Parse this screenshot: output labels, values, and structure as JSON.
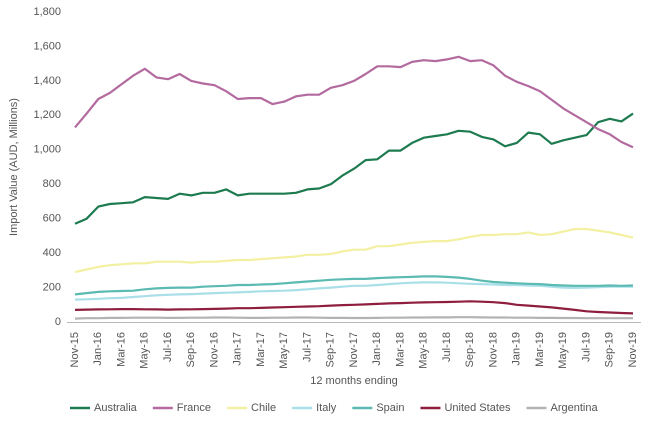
{
  "chart_data": {
    "type": "line",
    "y_label": "Import Value (AUD, Millions)",
    "x_label": "12 months ending",
    "categories": [
      "Nov-15",
      null,
      "Jan-16",
      null,
      "Mar-16",
      null,
      "May-16",
      null,
      "Jul-16",
      null,
      "Sep-16",
      null,
      "Nov-16",
      null,
      "Jan-17",
      null,
      "Mar-17",
      null,
      "May-17",
      null,
      "Jul-17",
      null,
      "Sep-17",
      null,
      "Nov-17",
      null,
      "Jan-18",
      null,
      "Mar-18",
      null,
      "May-18",
      null,
      "Jul-18",
      null,
      "Sep-18",
      null,
      "Nov-18",
      null,
      "Jan-19",
      null,
      "Mar-19",
      null,
      "May-19",
      null,
      "Jul-19",
      null,
      "Sep-19",
      null,
      "Nov-19"
    ],
    "ylim": [
      0,
      1800
    ],
    "yticks": [
      0,
      200,
      400,
      600,
      800,
      {
        "value": 1000,
        "label": "1,000"
      },
      {
        "value": 1200,
        "label": "1,200"
      },
      {
        "value": 1400,
        "label": "1,400"
      },
      {
        "value": 1600,
        "label": "1,600"
      },
      {
        "value": 1800,
        "label": "1,800"
      }
    ],
    "grid": false,
    "legend": "bottom",
    "series": [
      {
        "name": "Australia",
        "color": "#1e7b50",
        "values": [
          570,
          600,
          670,
          685,
          690,
          695,
          725,
          720,
          715,
          745,
          735,
          750,
          750,
          770,
          735,
          745,
          745,
          745,
          745,
          750,
          770,
          775,
          800,
          850,
          890,
          940,
          945,
          995,
          995,
          1040,
          1070,
          1080,
          1090,
          1110,
          1105,
          1075,
          1060,
          1020,
          1040,
          1100,
          1090,
          1035,
          1055,
          1070,
          1085,
          1160,
          1180,
          1165,
          1210
        ]
      },
      {
        "name": "France",
        "color": "#b36a9f",
        "values": [
          1130,
          1210,
          1295,
          1330,
          1380,
          1430,
          1470,
          1420,
          1410,
          1440,
          1400,
          1385,
          1375,
          1340,
          1295,
          1300,
          1300,
          1265,
          1280,
          1310,
          1320,
          1320,
          1360,
          1375,
          1400,
          1440,
          1485,
          1485,
          1480,
          1510,
          1520,
          1515,
          1525,
          1540,
          1515,
          1520,
          1490,
          1430,
          1395,
          1370,
          1340,
          1290,
          1240,
          1200,
          1160,
          1120,
          1090,
          1045,
          1015
        ]
      },
      {
        "name": "Chile",
        "color": "#f3f0a2",
        "values": [
          290,
          305,
          320,
          330,
          335,
          340,
          340,
          350,
          350,
          350,
          345,
          350,
          350,
          355,
          360,
          360,
          365,
          370,
          375,
          380,
          390,
          390,
          395,
          410,
          420,
          420,
          440,
          440,
          450,
          460,
          465,
          470,
          470,
          480,
          495,
          505,
          505,
          510,
          510,
          520,
          505,
          510,
          525,
          540,
          540,
          530,
          520,
          505,
          490
        ]
      },
      {
        "name": "Italy",
        "color": "#a9dfe8",
        "values": [
          130,
          132,
          135,
          138,
          140,
          145,
          150,
          155,
          158,
          160,
          162,
          165,
          168,
          170,
          172,
          175,
          178,
          180,
          182,
          185,
          190,
          195,
          200,
          205,
          210,
          210,
          215,
          220,
          225,
          228,
          230,
          230,
          228,
          225,
          222,
          220,
          218,
          215,
          215,
          212,
          210,
          205,
          200,
          198,
          200,
          202,
          205,
          205,
          205
        ]
      },
      {
        "name": "Spain",
        "color": "#5bbab1",
        "values": [
          160,
          168,
          175,
          178,
          180,
          182,
          190,
          195,
          198,
          200,
          200,
          205,
          208,
          210,
          215,
          215,
          218,
          220,
          225,
          230,
          235,
          240,
          245,
          248,
          250,
          250,
          255,
          258,
          260,
          262,
          265,
          265,
          262,
          258,
          250,
          240,
          232,
          228,
          225,
          222,
          220,
          215,
          212,
          210,
          210,
          210,
          212,
          210,
          212
        ]
      },
      {
        "name": "United States",
        "color": "#8e1d3e",
        "values": [
          70,
          72,
          73,
          74,
          75,
          75,
          74,
          73,
          72,
          73,
          74,
          75,
          76,
          78,
          80,
          80,
          82,
          84,
          86,
          88,
          90,
          92,
          95,
          98,
          100,
          102,
          105,
          108,
          110,
          112,
          114,
          115,
          116,
          118,
          120,
          118,
          115,
          110,
          100,
          95,
          90,
          85,
          78,
          70,
          62,
          58,
          55,
          52,
          50
        ]
      },
      {
        "name": "Argentina",
        "color": "#b3b3b3",
        "values": [
          20,
          22,
          22,
          24,
          24,
          25,
          25,
          25,
          24,
          24,
          25,
          25,
          26,
          26,
          25,
          24,
          24,
          25,
          25,
          26,
          26,
          25,
          24,
          24,
          23,
          23,
          24,
          25,
          25,
          26,
          26,
          27,
          27,
          28,
          28,
          27,
          26,
          26,
          25,
          25,
          24,
          24,
          23,
          23,
          22,
          22,
          22,
          22,
          22
        ]
      }
    ]
  }
}
